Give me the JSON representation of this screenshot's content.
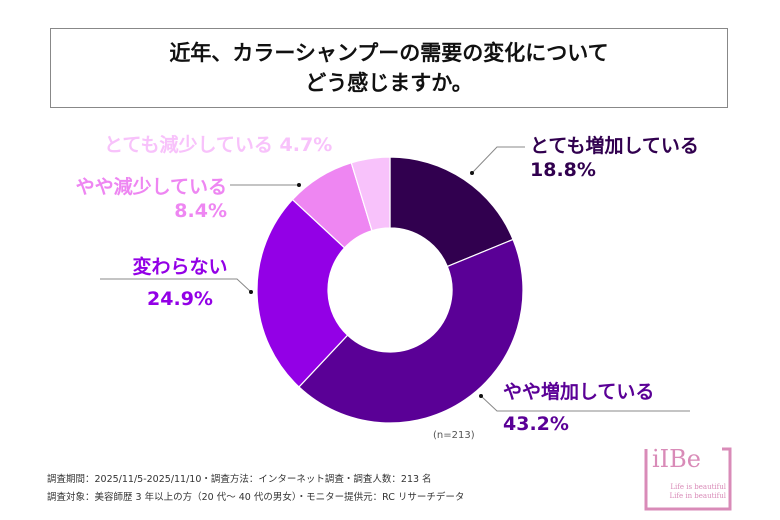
{
  "chart_data": {
    "type": "pie",
    "donut": true,
    "title": "近年、カラーシャンプーの需要の変化について どう感じますか。",
    "title_lines": [
      "近年、カラーシャンプーの需要の変化について",
      "どう感じますか。"
    ],
    "categories": [
      "とても増加している",
      "やや増加している",
      "変わらない",
      "やや減少している",
      "とても減少している"
    ],
    "values": [
      18.8,
      43.2,
      24.9,
      8.4,
      4.7
    ],
    "value_labels": [
      "18.8%",
      "43.2%",
      "24.9%",
      "8.4%",
      "4.7%"
    ],
    "colors": [
      "#31004f",
      "#5a0096",
      "#9300e6",
      "#ee86f2",
      "#f8c2fb"
    ],
    "sample_note": "(n=213)"
  },
  "footer": {
    "line1": "調査期間：2025/11/5-2025/11/10・調査方法：インターネット調査・調査人数：213 名",
    "line2": "調査対象：美容師歴 3 年以上の方（20 代～ 40 代の男女）・モニター提供元：RC リサーチデータ"
  },
  "logo": {
    "text": "iIBe",
    "line1": "Life is beautiful",
    "line2": "Life in beautiful",
    "color": "#d98bb8"
  }
}
